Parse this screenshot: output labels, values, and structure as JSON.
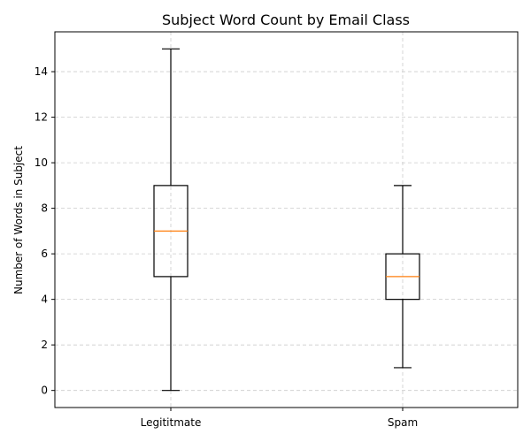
{
  "chart_data": {
    "type": "box",
    "title": "Subject Word Count by Email Class",
    "xlabel": "",
    "ylabel": "Number of Words in Subject",
    "ylim": [
      -0.75,
      15.75
    ],
    "yticks": [
      0,
      2,
      4,
      6,
      8,
      10,
      12,
      14
    ],
    "grid": true,
    "categories": [
      "Legititmate",
      "Spam"
    ],
    "boxes": [
      {
        "category": "Legititmate",
        "whisker_low": 0,
        "q1": 5,
        "median": 7,
        "q3": 9,
        "whisker_high": 15
      },
      {
        "category": "Spam",
        "whisker_low": 1,
        "q1": 4,
        "median": 5,
        "q3": 6,
        "whisker_high": 9
      }
    ],
    "colors": {
      "box": "#000000",
      "median": "#ff7f0e",
      "grid": "#cccccc"
    }
  }
}
